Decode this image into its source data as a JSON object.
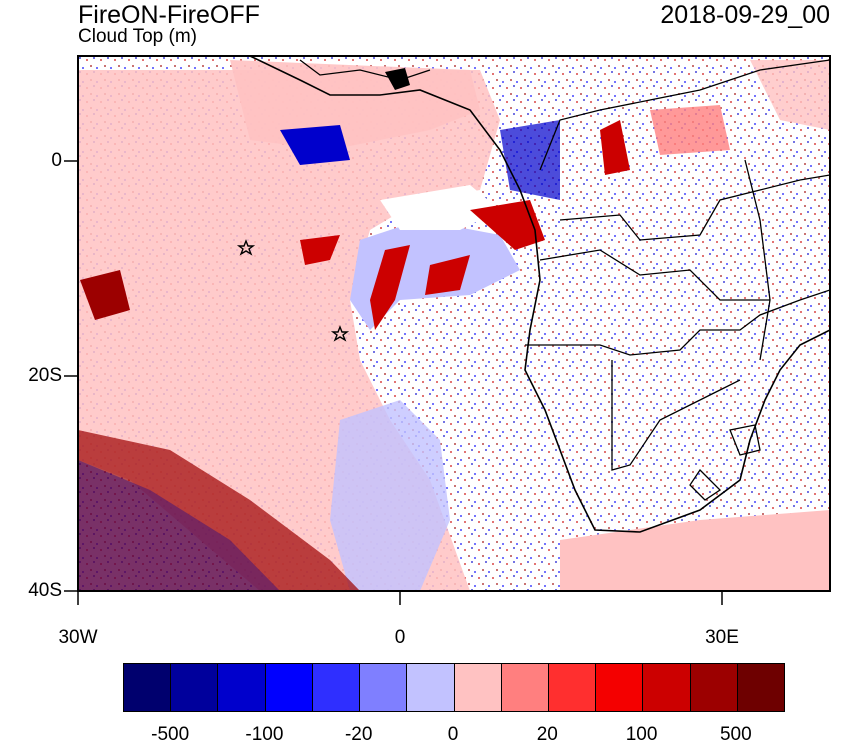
{
  "header": {
    "title": "FireON-FireOFF",
    "subtitle": "Cloud Top (m)",
    "datetime": "2018-09-29_00"
  },
  "axes": {
    "lat_labels": [
      "0",
      "20S",
      "40S"
    ],
    "lon_labels": [
      "30W",
      "0",
      "30E"
    ]
  },
  "colorbar": {
    "colors": [
      "#00006e",
      "#00009c",
      "#0000cc",
      "#0000ff",
      "#2f2fff",
      "#7f7fff",
      "#c2c2ff",
      "#ffc2c2",
      "#ff7f7f",
      "#ff2f2f",
      "#f40000",
      "#cc0000",
      "#9c0000",
      "#6e0000"
    ],
    "labels": [
      "-500",
      "-100",
      "-20",
      "0",
      "20",
      "100",
      "500"
    ]
  },
  "map": {
    "stars": [
      "star-marker",
      "star-marker"
    ]
  }
}
